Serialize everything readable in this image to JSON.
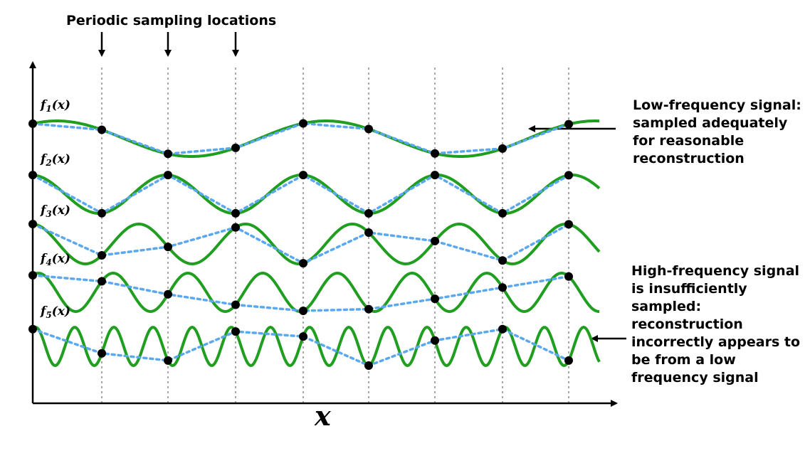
{
  "title": "Periodic sampling locations",
  "x_axis_label": "x",
  "signals": [
    {
      "label": "f",
      "subscript": "1",
      "suffix": "(x)"
    },
    {
      "label": "f",
      "subscript": "2",
      "suffix": "(x)"
    },
    {
      "label": "f",
      "subscript": "3",
      "suffix": "(x)"
    },
    {
      "label": "f",
      "subscript": "4",
      "suffix": "(x)"
    },
    {
      "label": "f",
      "subscript": "5",
      "suffix": "(x)"
    }
  ],
  "annotations": {
    "low": "Low-frequency signal:\nsampled adequately\nfor reasonable\nreconstruction",
    "high": "High-frequency signal\nis insufficiently\nsampled:\nreconstruction\nincorrectly appears to\nbe from a low\nfrequency signal"
  },
  "colors": {
    "signal": "#1f9e1f",
    "reconstruction": "#5aa8f0",
    "sample_point": "#000000",
    "sample_line": "#a8a8a8"
  }
}
